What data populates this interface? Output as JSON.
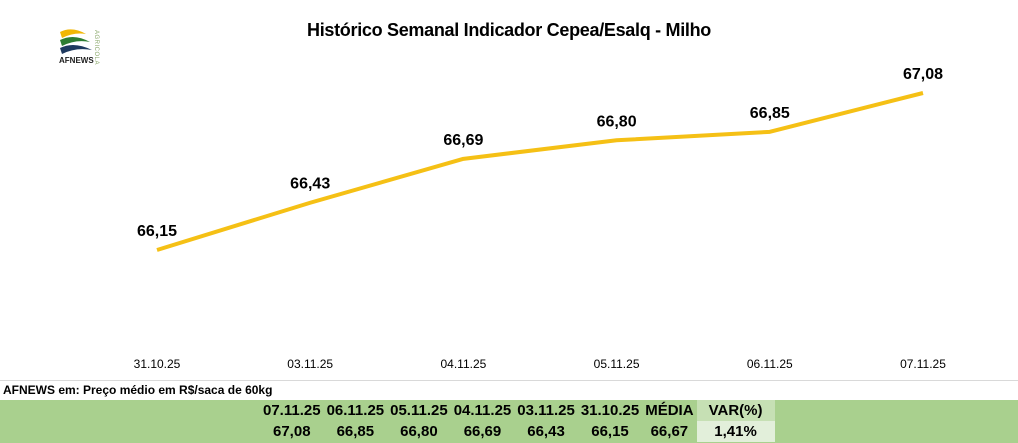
{
  "logo": {
    "text": "AFNEWS",
    "subtext": "AGRICOLA"
  },
  "chart_data": {
    "type": "line",
    "title": "Histórico Semanal Indicador Cepea/Esalq - Milho",
    "categories": [
      "31.10.25",
      "03.11.25",
      "04.11.25",
      "05.11.25",
      "06.11.25",
      "07.11.25"
    ],
    "values": [
      66.15,
      66.43,
      66.69,
      66.8,
      66.85,
      67.08
    ],
    "data_labels": [
      "66,15",
      "66,43",
      "66,69",
      "66,80",
      "66,85",
      "67,08"
    ],
    "line_color": "#f5c015",
    "grid": false,
    "legend": "none"
  },
  "footer_note": "AFNEWS em: Preço médio em R$/saca de 60kg",
  "summary_table": {
    "headers": [
      "07.11.25",
      "06.11.25",
      "05.11.25",
      "04.11.25",
      "03.11.25",
      "31.10.25",
      "MÉDIA",
      "VAR(%)"
    ],
    "values": [
      "67,08",
      "66,85",
      "66,80",
      "66,69",
      "66,43",
      "66,15",
      "66,67",
      "1,41%"
    ],
    "band_color": "#a9d08e"
  }
}
